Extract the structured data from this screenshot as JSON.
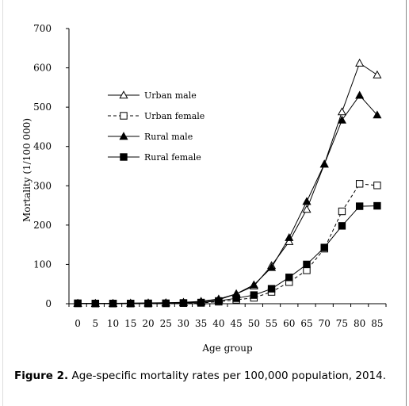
{
  "chart_data": {
    "type": "line",
    "title": "",
    "xlabel": "Age group",
    "ylabel": "Mortality (1/100 000)",
    "ylim": [
      0,
      700
    ],
    "yticks": [
      0,
      100,
      200,
      300,
      400,
      500,
      600,
      700
    ],
    "categories": [
      "0",
      "5",
      "10",
      "15",
      "20",
      "25",
      "30",
      "35",
      "40",
      "45",
      "50",
      "55",
      "60",
      "65",
      "70",
      "75",
      "80",
      "85"
    ],
    "legend_position": "upper-left",
    "grid": false,
    "series": [
      {
        "name": "Urban male",
        "marker": "triangle-open",
        "line": "solid",
        "values": [
          1,
          0.5,
          0.5,
          1,
          1.5,
          2,
          3,
          5,
          10,
          25,
          45,
          97,
          158,
          240,
          355,
          488,
          612,
          582
        ]
      },
      {
        "name": "Urban female",
        "marker": "square-open",
        "line": "dashed",
        "values": [
          1,
          0.5,
          0.5,
          0.5,
          0.5,
          1,
          1.5,
          2,
          5,
          10,
          15,
          30,
          55,
          85,
          140,
          235,
          305,
          301
        ]
      },
      {
        "name": "Rural male",
        "marker": "triangle-filled",
        "line": "solid",
        "values": [
          1,
          1,
          1,
          1.5,
          2,
          2.5,
          3.5,
          6,
          12,
          25,
          48,
          92,
          168,
          260,
          355,
          467,
          530,
          480
        ]
      },
      {
        "name": "Rural female",
        "marker": "square-filled",
        "line": "solid",
        "values": [
          1,
          0.5,
          0.5,
          0.5,
          1,
          1,
          2,
          3,
          7,
          14,
          22,
          38,
          67,
          100,
          143,
          198,
          248,
          249
        ]
      }
    ]
  },
  "caption": {
    "label": "Figure 2.",
    "text": "Age-specific mortality rates per 100,000 population, 2014."
  }
}
